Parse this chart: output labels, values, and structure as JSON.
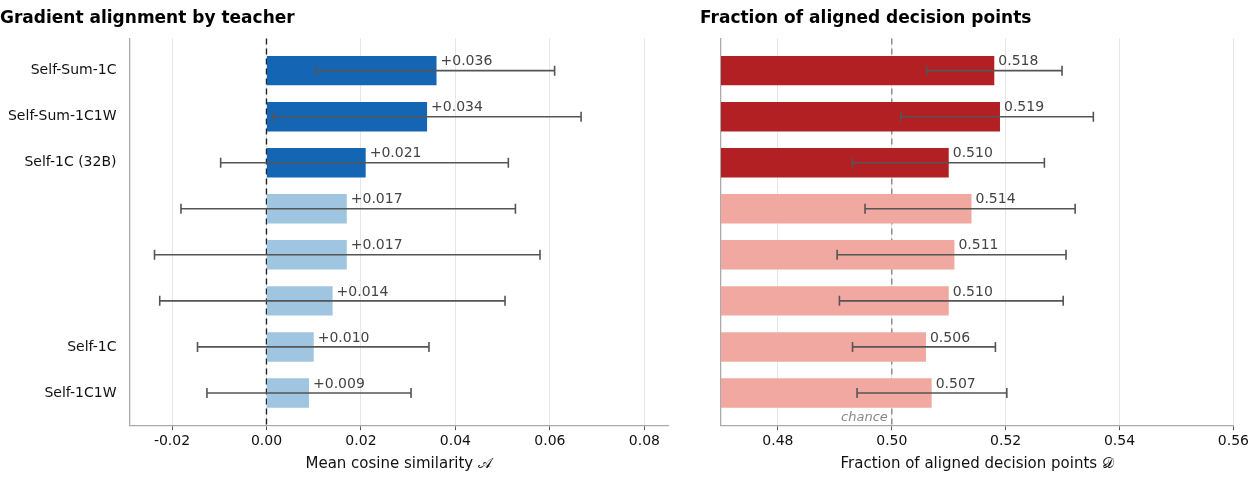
{
  "chart_data": [
    {
      "type": "bar",
      "orientation": "horizontal",
      "title": "Gradient alignment by teacher",
      "xlabel": "Mean cosine similarity 𝒜",
      "categories": [
        "Self-Sum-1C",
        "Self-Sum-1C1W",
        "Self-1C (32B)",
        null,
        null,
        null,
        "Self-1C",
        "Self-1C1W"
      ],
      "values": [
        0.036,
        0.034,
        0.021,
        0.017,
        0.017,
        0.014,
        0.01,
        0.009
      ],
      "colors": [
        "#1565b5",
        "#1565b5",
        "#1565b5",
        "#9fc5e1",
        "#9fc5e1",
        "#9fc5e1",
        "#9fc5e1",
        "#9fc5e1"
      ],
      "errors": [
        [
          0.0105,
          0.061
        ],
        [
          0.0013,
          0.0666
        ],
        [
          -0.0097,
          0.0512
        ],
        [
          -0.0181,
          0.0527
        ],
        [
          -0.0237,
          0.0579
        ],
        [
          -0.0226,
          0.0505
        ],
        [
          -0.0146,
          0.0344
        ],
        [
          -0.0126,
          0.0306
        ]
      ],
      "value_labels": [
        "+0.036",
        "+0.034",
        "+0.021",
        "+0.017",
        "+0.017",
        "+0.014",
        "+0.010",
        "+0.009"
      ],
      "xlim": [
        -0.029,
        0.085
      ],
      "xticks": [
        {
          "value": -0.02,
          "label": "-0.02"
        },
        {
          "value": 0,
          "label": "0.00"
        },
        {
          "value": 0.02,
          "label": "0.02"
        },
        {
          "value": 0.04,
          "label": "0.04"
        },
        {
          "value": 0.06,
          "label": "0.06"
        },
        {
          "value": 0.08,
          "label": "0.08"
        }
      ],
      "ref_lines": [
        {
          "axis": "x",
          "value": 0,
          "color": "#222222",
          "line_style": "dashed"
        }
      ],
      "grid": "x",
      "legend": false
    },
    {
      "type": "bar",
      "orientation": "horizontal",
      "title": "Fraction of aligned decision points",
      "xlabel": "Fraction of aligned decision points 𝒟",
      "categories": [
        null,
        null,
        null,
        null,
        null,
        null,
        null,
        null
      ],
      "values": [
        0.518,
        0.519,
        0.51,
        0.514,
        0.511,
        0.51,
        0.506,
        0.507
      ],
      "colors": [
        "#b22024",
        "#b22024",
        "#b22024",
        "#f0a8a0",
        "#f0a8a0",
        "#f0a8a0",
        "#f0a8a0",
        "#f0a8a0"
      ],
      "errors": [
        [
          0.5061,
          0.5299
        ],
        [
          0.5016,
          0.5354
        ],
        [
          0.4931,
          0.5268
        ],
        [
          0.4953,
          0.5322
        ],
        [
          0.4904,
          0.5306
        ],
        [
          0.4908,
          0.5301
        ],
        [
          0.4931,
          0.5182
        ],
        [
          0.4939,
          0.5202
        ]
      ],
      "value_labels": [
        "0.518",
        "0.519",
        "0.510",
        "0.514",
        "0.511",
        "0.510",
        "0.506",
        "0.507"
      ],
      "xlim": [
        0.47,
        0.56
      ],
      "xticks": [
        0.48,
        {
          "value": 0.5,
          "label": "0.50"
        },
        0.52,
        0.54,
        0.56
      ],
      "ref_lines": [
        {
          "axis": "x",
          "value": 0.5,
          "label": "chance",
          "color": "#888888",
          "line_style": "dashed"
        }
      ],
      "grid": "x",
      "legend": false
    }
  ]
}
